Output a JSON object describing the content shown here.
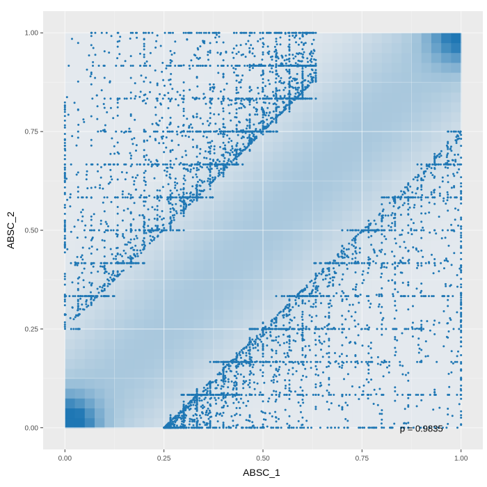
{
  "chart_data": {
    "type": "scatter",
    "title": "",
    "xlabel": "ABSC_1",
    "ylabel": "ABSC_2",
    "xlim": [
      -0.055,
      1.055
    ],
    "ylim": [
      -0.055,
      1.055
    ],
    "x_ticks": [
      {
        "value": 0,
        "label": "0.00"
      },
      {
        "value": 0.25,
        "label": "0.25"
      },
      {
        "value": 0.5,
        "label": "0.50"
      },
      {
        "value": 0.75,
        "label": "0.75"
      },
      {
        "value": 1,
        "label": "1.00"
      }
    ],
    "y_ticks": [
      {
        "value": 0,
        "label": "0.00"
      },
      {
        "value": 0.25,
        "label": "0.25"
      },
      {
        "value": 0.5,
        "label": "0.50"
      },
      {
        "value": 0.75,
        "label": "0.75"
      },
      {
        "value": 1,
        "label": "1.00"
      }
    ],
    "grid": true,
    "annotation": {
      "text": "ρ = 0.9835",
      "x": 0.9,
      "y": -0.01
    },
    "colors": {
      "point": "#1f77b4",
      "panel": "#ebebeb",
      "grid_major": "#ffffff",
      "density_high": "#1f77b4",
      "density_mid": "#a9c8dd",
      "density_low": "#e4e9ee"
    },
    "density": {
      "description_values": "copula density shading on unit square, highest at corners (0,0) and (1,1), ridge along diagonal",
      "peaks": [
        {
          "x": 0.0,
          "y": 0.0,
          "strength": 1.0
        },
        {
          "x": 1.0,
          "y": 1.0,
          "strength": 0.75
        }
      ],
      "ridge_strength": 0.35
    },
    "series": [
      {
        "values_note": "points concentrated in two bands: above diagonal (y ≈ x + 0.25 to 1) and below diagonal (y ≈ x − 0.25 to 0), plus clusters on edges x=0, x=1, y=0, y=1",
        "upper_band": {
          "x_range": [
            0.0,
            0.63
          ],
          "offset": 0.25,
          "count": 2600
        },
        "lower_band": {
          "x_range": [
            0.25,
            1.0
          ],
          "offset": 0.25,
          "count": 2600
        },
        "edge_left": {
          "x": 0.0,
          "y_range": [
            0.25,
            0.85
          ],
          "count": 80
        },
        "edge_right": {
          "x": 1.0,
          "y_range": [
            0.0,
            0.62
          ],
          "count": 70
        },
        "edge_top": {
          "y": 1.0,
          "x_range": [
            0.0,
            0.63
          ],
          "count": 60
        },
        "edge_bottom": {
          "y": 0.0,
          "x_range": [
            0.25,
            1.0
          ],
          "count": 60
        },
        "seed": 7
      }
    ]
  }
}
